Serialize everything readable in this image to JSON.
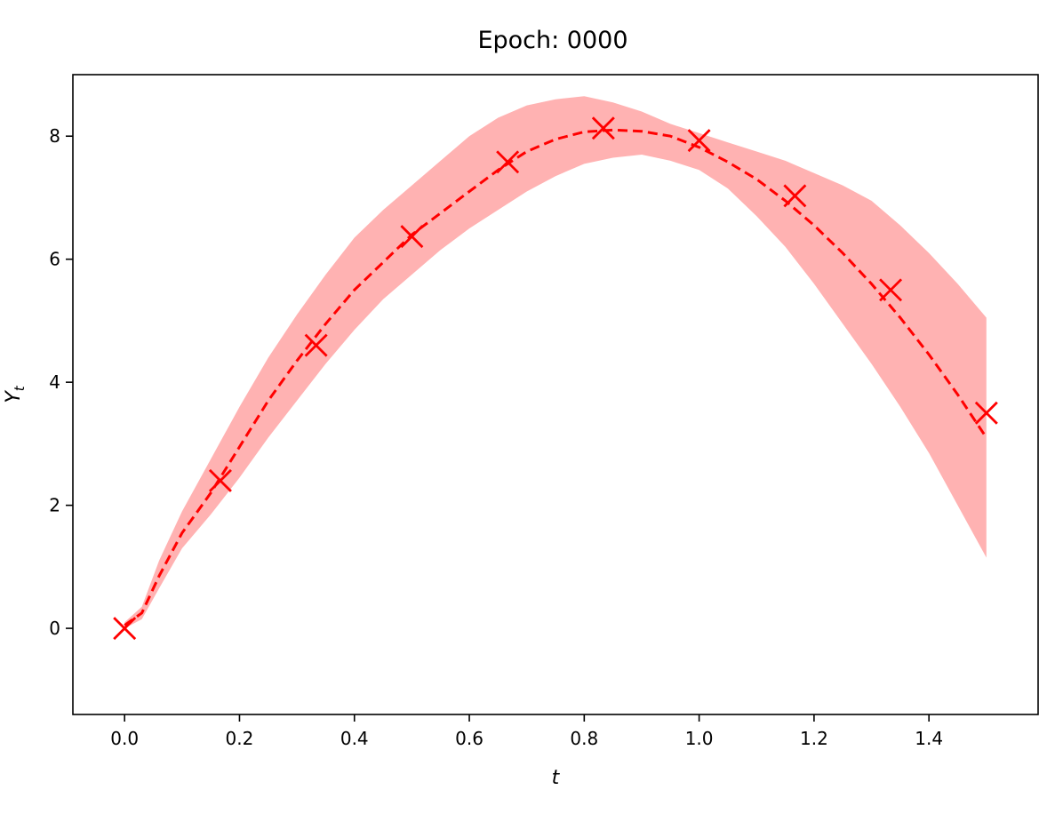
{
  "chart_data": {
    "type": "line",
    "title": "Epoch: 0000",
    "xlabel": "t",
    "ylabel": "Y",
    "ylabel_subscript": "t",
    "xlim": [
      -0.09,
      1.59
    ],
    "ylim": [
      -1.4,
      9.0
    ],
    "xticks": [
      0.0,
      0.2,
      0.4,
      0.6,
      0.8,
      1.0,
      1.2,
      1.4
    ],
    "xtick_labels": [
      "0.0",
      "0.2",
      "0.4",
      "0.6",
      "0.8",
      "1.0",
      "1.2",
      "1.4"
    ],
    "yticks": [
      0,
      2,
      4,
      6,
      8
    ],
    "ytick_labels": [
      "0",
      "2",
      "4",
      "6",
      "8"
    ],
    "grid": false,
    "legend": "none",
    "colors": {
      "line": "#ff0000",
      "band": "#ff0000",
      "band_opacity": 0.3,
      "markers": "#ff0000"
    },
    "observations": {
      "x": [
        0.0,
        0.1667,
        0.3333,
        0.5,
        0.6667,
        0.8333,
        1.0,
        1.1667,
        1.3333,
        1.5
      ],
      "y": [
        0.0,
        2.4,
        4.6,
        6.37,
        7.58,
        8.13,
        7.93,
        7.03,
        5.5,
        3.5
      ]
    },
    "prediction_mean": {
      "x": [
        0.0,
        0.03,
        0.06,
        0.1,
        0.15,
        0.2,
        0.25,
        0.3,
        0.35,
        0.4,
        0.45,
        0.5,
        0.55,
        0.6,
        0.65,
        0.7,
        0.75,
        0.8,
        0.85,
        0.9,
        0.95,
        1.0,
        1.05,
        1.1,
        1.15,
        1.2,
        1.25,
        1.3,
        1.35,
        1.4,
        1.45,
        1.5
      ],
      "y": [
        0.05,
        0.25,
        0.85,
        1.55,
        2.2,
        2.95,
        3.7,
        4.35,
        4.95,
        5.5,
        5.95,
        6.4,
        6.75,
        7.1,
        7.45,
        7.75,
        7.95,
        8.07,
        8.1,
        8.08,
        8.0,
        7.82,
        7.58,
        7.3,
        6.95,
        6.55,
        6.1,
        5.6,
        5.05,
        4.45,
        3.8,
        3.1
      ]
    },
    "prediction_band": {
      "x": [
        0.0,
        0.03,
        0.06,
        0.1,
        0.15,
        0.2,
        0.25,
        0.3,
        0.35,
        0.4,
        0.45,
        0.5,
        0.55,
        0.6,
        0.65,
        0.7,
        0.75,
        0.8,
        0.85,
        0.9,
        0.95,
        1.0,
        1.05,
        1.1,
        1.15,
        1.2,
        1.25,
        1.3,
        1.35,
        1.4,
        1.45,
        1.5
      ],
      "upper": [
        0.1,
        0.35,
        1.1,
        1.9,
        2.75,
        3.6,
        4.4,
        5.1,
        5.75,
        6.35,
        6.8,
        7.2,
        7.6,
        8.0,
        8.3,
        8.5,
        8.6,
        8.65,
        8.55,
        8.4,
        8.2,
        8.05,
        7.9,
        7.75,
        7.6,
        7.4,
        7.2,
        6.95,
        6.55,
        6.1,
        5.6,
        5.05
      ],
      "lower": [
        0.0,
        0.15,
        0.65,
        1.3,
        1.85,
        2.45,
        3.1,
        3.7,
        4.3,
        4.85,
        5.35,
        5.75,
        6.15,
        6.5,
        6.8,
        7.1,
        7.35,
        7.55,
        7.65,
        7.7,
        7.6,
        7.45,
        7.15,
        6.7,
        6.2,
        5.6,
        4.95,
        4.3,
        3.6,
        2.85,
        2.0,
        1.15
      ]
    }
  }
}
